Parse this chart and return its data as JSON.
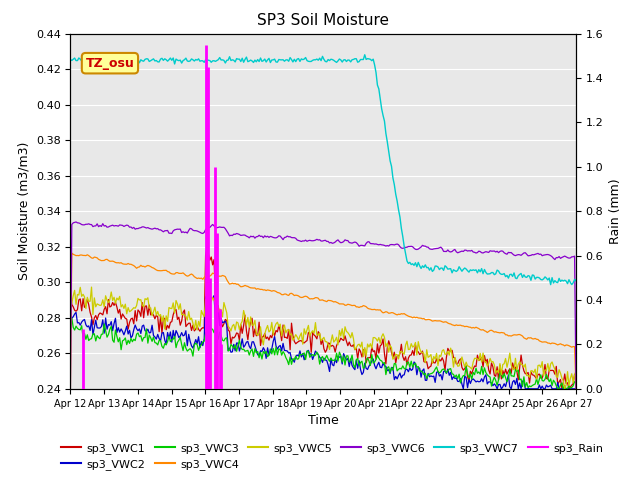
{
  "title": "SP3 Soil Moisture",
  "xlabel": "Time",
  "ylabel_left": "Soil Moisture (m3/m3)",
  "ylabel_right": "Rain (mm)",
  "ylim_left": [
    0.24,
    0.44
  ],
  "ylim_right": [
    0.0,
    1.6
  ],
  "background_color": "#e8e8e8",
  "label_box": "TZ_osu",
  "label_box_color": "#ffff99",
  "label_box_text_color": "#cc0000",
  "series_colors": {
    "sp3_VWC1": "#cc0000",
    "sp3_VWC2": "#0000cc",
    "sp3_VWC3": "#00cc00",
    "sp3_VWC4": "#ff8800",
    "sp3_VWC5": "#cccc00",
    "sp3_VWC6": "#8800cc",
    "sp3_VWC7": "#00cccc",
    "sp3_Rain": "#ff00ff"
  },
  "tick_labels": [
    "Apr 12",
    "Apr 13",
    "Apr 14",
    "Apr 15",
    "Apr 16",
    "Apr 17",
    "Apr 18",
    "Apr 19",
    "Apr 20",
    "Apr 21",
    "Apr 22",
    "Apr 23",
    "Apr 24",
    "Apr 25",
    "Apr 26",
    "Apr 27"
  ],
  "yticks_left": [
    0.24,
    0.26,
    0.28,
    0.3,
    0.32,
    0.34,
    0.36,
    0.38,
    0.4,
    0.42,
    0.44
  ],
  "yticks_right": [
    0.0,
    0.2,
    0.4,
    0.6,
    0.8,
    1.0,
    1.2,
    1.4,
    1.6
  ]
}
